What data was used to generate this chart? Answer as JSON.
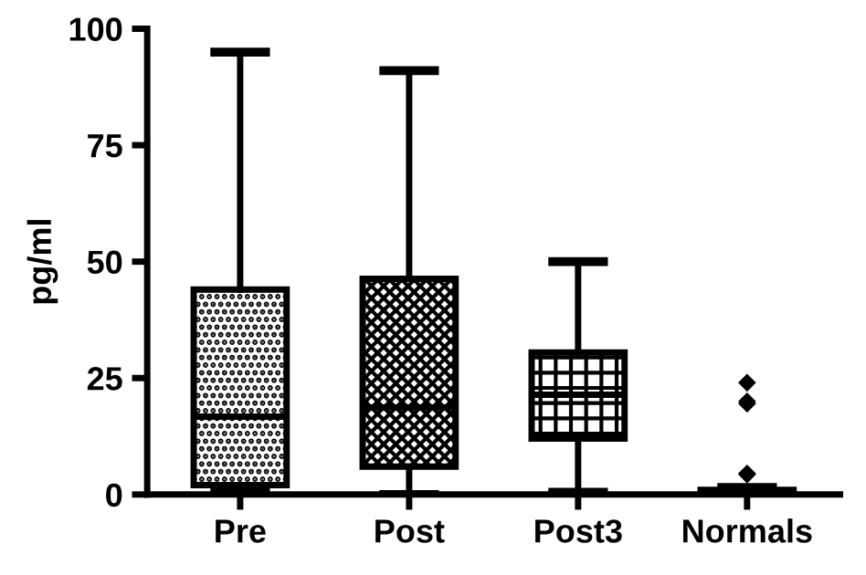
{
  "chart_data": {
    "type": "box",
    "ylabel": "pg/ml",
    "categories": [
      "Pre",
      "Post",
      "Post3",
      "Normals"
    ],
    "boxes": [
      {
        "low": 0.5,
        "q1": 2,
        "median": 16.7,
        "q3": 44,
        "high": 95
      },
      {
        "low": 0,
        "q1": 6,
        "median": 18.7,
        "q3": 46.3,
        "high": 91
      },
      {
        "low": 0.5,
        "q1": 12,
        "median": 21.4,
        "q3": 30.5,
        "high": 50
      },
      {
        "low": 0,
        "q1": 0.3,
        "median": 0.5,
        "q3": 1,
        "high": 1.5,
        "outliers": [
          24,
          20,
          19.5,
          4.5,
          4.3
        ]
      }
    ],
    "ylim": [
      0,
      100
    ],
    "yticks": [
      0,
      25,
      50,
      75,
      100
    ],
    "grid": false
  }
}
